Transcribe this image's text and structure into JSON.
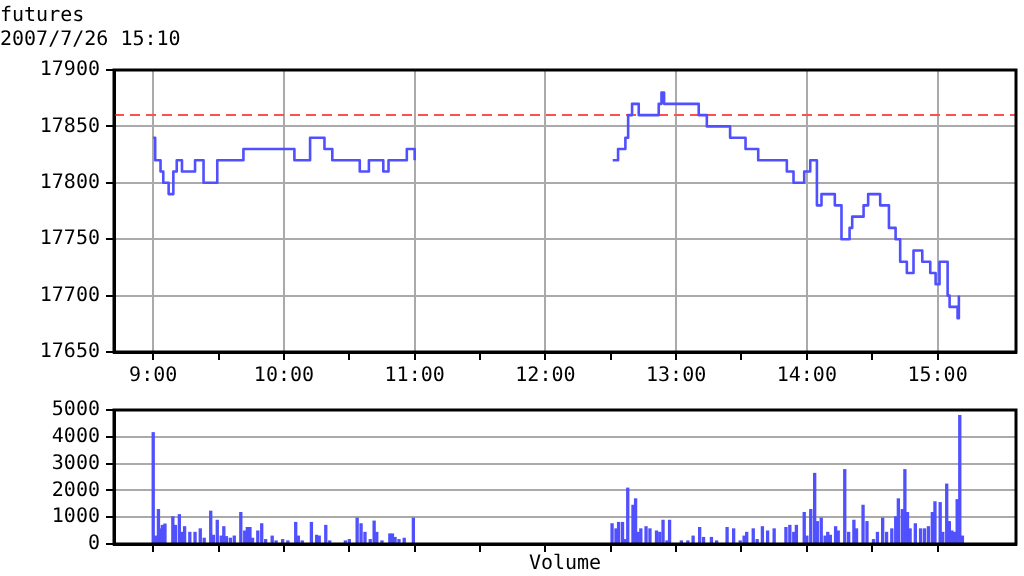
{
  "chart_data": [
    {
      "type": "step",
      "title": "futures",
      "subtitle": "2007/7/26 15:10",
      "x": [
        9.0,
        9.015,
        9.056,
        9.077,
        9.118,
        9.154,
        9.18,
        9.22,
        9.32,
        9.385,
        9.49,
        9.69,
        10.0,
        10.08,
        10.2,
        10.31,
        10.37,
        10.58,
        10.65,
        10.76,
        10.8,
        10.94,
        11.0,
        11.5,
        12.515,
        12.556,
        12.612,
        12.633,
        12.663,
        12.714,
        12.867,
        12.888,
        12.908,
        13.173,
        13.235,
        13.413,
        13.531,
        13.628,
        13.801,
        13.847,
        13.898,
        13.98,
        14.026,
        14.077,
        14.112,
        14.214,
        14.265,
        14.327,
        14.347,
        14.434,
        14.469,
        14.561,
        14.628,
        14.679,
        14.714,
        14.765,
        14.816,
        14.883,
        14.944,
        14.985,
        15.015,
        15.077,
        15.092,
        15.133,
        15.153,
        15.163
      ],
      "values": [
        17840,
        17820,
        17810,
        17800,
        17790,
        17810,
        17820,
        17810,
        17820,
        17800,
        17820,
        17830,
        17830,
        17820,
        17840,
        17830,
        17820,
        17810,
        17820,
        17810,
        17820,
        17830,
        17820,
        null,
        17820,
        17830,
        17840,
        17860,
        17870,
        17860,
        17870,
        17880,
        17870,
        17860,
        17850,
        17840,
        17830,
        17820,
        17820,
        17810,
        17800,
        17810,
        17820,
        17780,
        17790,
        17780,
        17750,
        17760,
        17770,
        17780,
        17790,
        17780,
        17760,
        17750,
        17730,
        17720,
        17740,
        17730,
        17720,
        17710,
        17730,
        17700,
        17690,
        17690,
        17680,
        17700
      ],
      "color": "#5050ff",
      "marker": "none",
      "xlim": [
        8.7,
        15.6
      ],
      "xticks": [
        {
          "value": 9,
          "label": "9:00"
        },
        {
          "value": 9.5,
          "label": null
        },
        {
          "value": 10,
          "label": "10:00"
        },
        {
          "value": 10.5,
          "label": null
        },
        {
          "value": 11,
          "label": "11:00"
        },
        {
          "value": 11.5,
          "label": null
        },
        {
          "value": 12,
          "label": "12:00"
        },
        {
          "value": 12.5,
          "label": null
        },
        {
          "value": 13,
          "label": "13:00"
        },
        {
          "value": 13.5,
          "label": null
        },
        {
          "value": 14,
          "label": "14:00"
        },
        {
          "value": 14.5,
          "label": null
        },
        {
          "value": 15,
          "label": "15:00"
        }
      ],
      "ylim": [
        17650,
        17900
      ],
      "yticks": [
        17650,
        17700,
        17750,
        17800,
        17850,
        17900
      ],
      "ref_lines": [
        {
          "axis": "y",
          "value": 17860,
          "color": "#ff5050",
          "line_style": "dashed"
        }
      ],
      "grid": true,
      "legend": false
    },
    {
      "type": "bar",
      "xlabel": "Volume",
      "x": [
        9.0,
        9.02,
        9.04,
        9.06,
        9.07,
        9.09,
        9.15,
        9.17,
        9.2,
        9.22,
        9.24,
        9.28,
        9.32,
        9.36,
        9.39,
        9.44,
        9.46,
        9.49,
        9.52,
        9.54,
        9.56,
        9.59,
        9.62,
        9.67,
        9.7,
        9.72,
        9.74,
        9.76,
        9.8,
        9.83,
        9.86,
        9.91,
        9.94,
        9.99,
        10.03,
        10.09,
        10.11,
        10.14,
        10.21,
        10.25,
        10.27,
        10.32,
        10.35,
        10.47,
        10.5,
        10.56,
        10.59,
        10.62,
        10.66,
        10.69,
        10.71,
        10.75,
        10.81,
        10.83,
        10.85,
        10.88,
        10.92,
        10.99,
        12.51,
        12.54,
        12.56,
        12.59,
        12.61,
        12.63,
        12.67,
        12.69,
        12.71,
        12.73,
        12.77,
        12.8,
        12.85,
        12.875,
        12.9,
        12.93,
        12.95,
        13.04,
        13.09,
        13.13,
        13.18,
        13.21,
        13.27,
        13.31,
        13.39,
        13.44,
        13.49,
        13.52,
        13.54,
        13.59,
        13.62,
        13.66,
        13.7,
        13.75,
        13.84,
        13.87,
        13.9,
        13.92,
        13.98,
        14.0,
        14.03,
        14.06,
        14.08,
        14.11,
        14.14,
        14.16,
        14.18,
        14.22,
        14.24,
        14.29,
        14.32,
        14.36,
        14.38,
        14.43,
        14.46,
        14.51,
        14.54,
        14.58,
        14.61,
        14.65,
        14.68,
        14.7,
        14.73,
        14.75,
        14.77,
        14.79,
        14.83,
        14.87,
        14.9,
        14.93,
        14.96,
        14.98,
        15.02,
        15.04,
        15.07,
        15.09,
        15.11,
        15.13,
        15.15,
        15.17,
        15.19
      ],
      "values": [
        4150,
        290,
        1280,
        560,
        690,
        740,
        1010,
        690,
        1090,
        430,
        640,
        430,
        430,
        560,
        210,
        1220,
        320,
        880,
        290,
        640,
        270,
        210,
        290,
        1170,
        480,
        610,
        610,
        210,
        480,
        750,
        160,
        290,
        110,
        160,
        110,
        800,
        290,
        110,
        800,
        320,
        290,
        690,
        110,
        110,
        160,
        960,
        750,
        430,
        160,
        850,
        430,
        110,
        370,
        370,
        240,
        160,
        210,
        960,
        750,
        560,
        800,
        800,
        160,
        2080,
        1440,
        1680,
        430,
        560,
        640,
        560,
        480,
        430,
        880,
        110,
        880,
        110,
        110,
        290,
        610,
        240,
        240,
        110,
        610,
        560,
        110,
        290,
        430,
        560,
        160,
        640,
        480,
        560,
        610,
        690,
        430,
        690,
        1170,
        290,
        1280,
        2630,
        830,
        960,
        290,
        430,
        320,
        640,
        480,
        2770,
        430,
        880,
        560,
        1440,
        830,
        160,
        430,
        960,
        430,
        560,
        1010,
        1680,
        1280,
        2770,
        1170,
        560,
        750,
        560,
        560,
        640,
        1170,
        1570,
        1540,
        430,
        2230,
        830,
        480,
        430,
        1650,
        4790,
        290
      ],
      "color": "#5050ff",
      "xlim": [
        8.7,
        15.6
      ],
      "xticks": [
        {
          "value": 9,
          "label": null
        },
        {
          "value": 9.5,
          "label": null
        },
        {
          "value": 10,
          "label": null
        },
        {
          "value": 10.5,
          "label": null
        },
        {
          "value": 11,
          "label": null
        },
        {
          "value": 11.5,
          "label": null
        },
        {
          "value": 12,
          "label": null
        },
        {
          "value": 12.5,
          "label": null
        },
        {
          "value": 13,
          "label": null
        },
        {
          "value": 13.5,
          "label": null
        },
        {
          "value": 14,
          "label": null
        },
        {
          "value": 14.5,
          "label": null
        },
        {
          "value": 15,
          "label": null
        }
      ],
      "ylim": [
        0,
        5000
      ],
      "yticks": [
        0,
        1000,
        2000,
        3000,
        4000,
        5000
      ],
      "tick_labels": "y",
      "grid": true,
      "legend": false
    }
  ]
}
